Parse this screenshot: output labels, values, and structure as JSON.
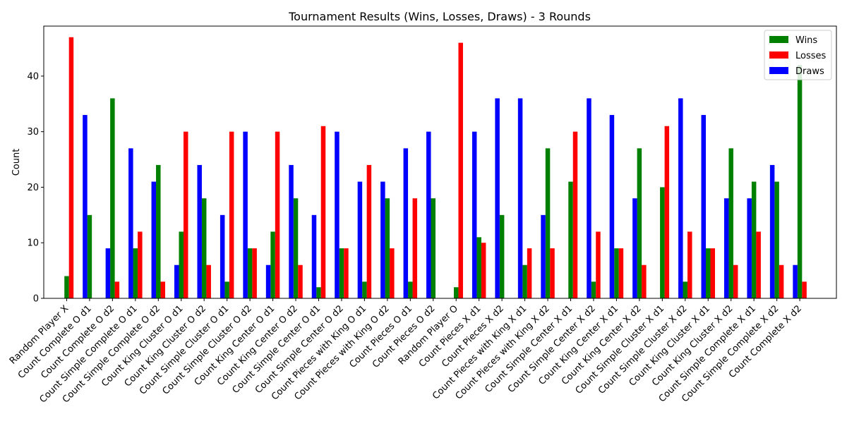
{
  "chart_data": {
    "type": "bar",
    "title": "Tournament Results (Wins, Losses, Draws) - 3 Rounds",
    "xlabel": "",
    "ylabel": "Count",
    "ylim": [
      0,
      49
    ],
    "yticks": [
      0,
      10,
      20,
      30,
      40
    ],
    "grid": false,
    "legend_position": "top-right",
    "categories": [
      "Random Player X",
      "Count Complete O d1",
      "Count Complete O d2",
      "Count Simple Complete O d1",
      "Count Simple Complete O d2",
      "Count King Cluster O d1",
      "Count King Cluster O d2",
      "Count Simple Cluster O d1",
      "Count Simple Cluster O d2",
      "Count King Center O d1",
      "Count King Center O d2",
      "Count Simple Center O d1",
      "Count Simple Center O d2",
      "Count Pieces with King O d1",
      "Count Pieces with King O d2",
      "Count Pieces O d1",
      "Count Pieces O d2",
      "Random Player O",
      "Count Pieces X d1",
      "Count Pieces X d2",
      "Count Pieces with King X d1",
      "Count Pieces with King X d2",
      "Count Simple Center X d1",
      "Count Simple Center X d2",
      "Count King Center X d1",
      "Count King Center X d2",
      "Count Simple Cluster X d1",
      "Count Simple Cluster X d2",
      "Count King Cluster X d1",
      "Count King Cluster X d2",
      "Count Simple Complete X d1",
      "Count Simple Complete X d2",
      "Count Complete X d2"
    ],
    "series": [
      {
        "name": "Wins",
        "color": "#008000",
        "values": [
          4,
          15,
          36,
          9,
          24,
          12,
          18,
          3,
          9,
          12,
          18,
          2,
          9,
          3,
          18,
          3,
          18,
          2,
          11,
          15,
          6,
          27,
          21,
          3,
          9,
          27,
          20,
          3,
          9,
          27,
          21,
          21,
          42
        ]
      },
      {
        "name": "Losses",
        "color": "#ff0000",
        "values": [
          47,
          0,
          3,
          12,
          3,
          30,
          6,
          30,
          9,
          30,
          6,
          31,
          9,
          24,
          9,
          18,
          0,
          46,
          10,
          0,
          9,
          9,
          30,
          12,
          9,
          6,
          31,
          12,
          9,
          6,
          12,
          6,
          3
        ]
      },
      {
        "name": "Draws",
        "color": "#0000ff",
        "values": [
          0,
          33,
          9,
          27,
          21,
          6,
          24,
          15,
          30,
          6,
          24,
          15,
          30,
          21,
          21,
          27,
          30,
          0,
          30,
          36,
          36,
          15,
          0,
          36,
          33,
          18,
          0,
          36,
          33,
          18,
          18,
          24,
          6
        ]
      }
    ]
  }
}
